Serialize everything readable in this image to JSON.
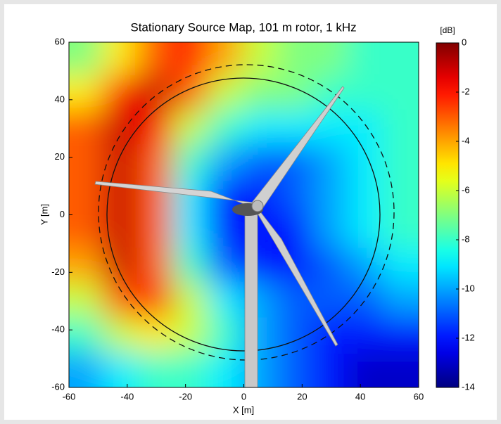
{
  "chart_data": {
    "type": "heatmap",
    "title": "Stationary Source Map, 101 m rotor, 1 kHz",
    "x_label": "X [m]",
    "y_label": "Y [m]",
    "colorbar_label": "[dB]",
    "colormap": "jet",
    "x": [
      -54,
      -42,
      -30,
      -18,
      -6,
      6,
      18,
      30,
      42,
      54
    ],
    "y": [
      54,
      42,
      30,
      18,
      6,
      -6,
      -18,
      -30,
      -42,
      -54
    ],
    "z": [
      [
        -7,
        -5,
        -3,
        -2,
        -4,
        -6,
        -7,
        -7,
        -8,
        -8
      ],
      [
        -5,
        -2,
        -1,
        -3,
        -6,
        -7,
        -7,
        -8,
        -8,
        -8
      ],
      [
        -3,
        -1,
        -2,
        -6,
        -8,
        -9,
        -9,
        -9,
        -9,
        -8
      ],
      [
        -3,
        -1,
        -3,
        -8,
        -10,
        -11,
        -11,
        -10,
        -9,
        -8
      ],
      [
        -3,
        -1,
        -3,
        -9,
        -12,
        -12,
        -11,
        -10,
        -9,
        -8
      ],
      [
        -3,
        -1,
        -3,
        -9,
        -12,
        -12,
        -12,
        -10,
        -9,
        -8
      ],
      [
        -4,
        -1,
        -3,
        -8,
        -11,
        -12,
        -12,
        -11,
        -10,
        -9
      ],
      [
        -6,
        -3,
        -2,
        -6,
        -9,
        -10,
        -11,
        -11,
        -11,
        -10
      ],
      [
        -8,
        -6,
        -5,
        -6,
        -8,
        -10,
        -11,
        -12,
        -12,
        -12
      ],
      [
        -10,
        -9,
        -8,
        -8,
        -9,
        -10,
        -11,
        -12,
        -13,
        -13
      ]
    ],
    "xlim": [
      -60,
      60
    ],
    "ylim": [
      -60,
      60
    ],
    "xticks": [
      -60,
      -40,
      -20,
      0,
      20,
      40,
      60
    ],
    "yticks": [
      -60,
      -40,
      -20,
      0,
      20,
      40,
      60
    ],
    "clim": [
      -14,
      0
    ],
    "cticks": [
      0,
      -2,
      -4,
      -6,
      -8,
      -10,
      -12,
      -14
    ]
  }
}
